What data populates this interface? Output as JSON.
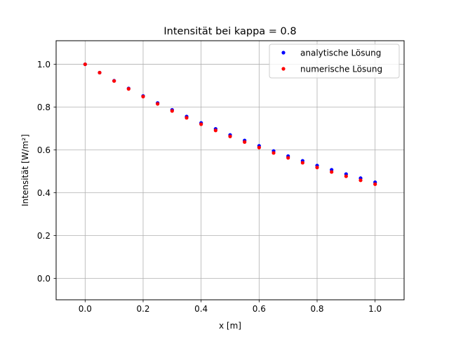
{
  "chart_data": {
    "type": "scatter",
    "title": "Intensität bei kappa = 0.8",
    "xlabel": "x [m]",
    "ylabel": "Intensität [W/m²]",
    "xlim": [
      -0.1,
      1.1
    ],
    "ylim": [
      -0.1,
      1.11
    ],
    "xticks": [
      0.0,
      0.2,
      0.4,
      0.6,
      0.8,
      1.0
    ],
    "yticks": [
      0.0,
      0.2,
      0.4,
      0.6,
      0.8,
      1.0
    ],
    "xtick_labels": [
      "0.0",
      "0.2",
      "0.4",
      "0.6",
      "0.8",
      "1.0"
    ],
    "ytick_labels": [
      "0.0",
      "0.2",
      "0.4",
      "0.6",
      "0.8",
      "1.0"
    ],
    "grid": true,
    "legend_position": "top-right",
    "x": [
      0.0,
      0.05,
      0.1,
      0.15,
      0.2,
      0.25,
      0.3,
      0.35,
      0.4,
      0.45,
      0.5,
      0.55,
      0.6,
      0.65,
      0.7,
      0.75,
      0.8,
      0.85,
      0.9,
      0.95,
      1.0
    ],
    "series": [
      {
        "name": "analytische Lösung",
        "color": "#0000ff",
        "values": [
          1.0,
          0.961,
          0.923,
          0.887,
          0.852,
          0.819,
          0.787,
          0.756,
          0.726,
          0.698,
          0.67,
          0.644,
          0.619,
          0.595,
          0.571,
          0.549,
          0.527,
          0.507,
          0.487,
          0.468,
          0.449
        ]
      },
      {
        "name": "numerische Lösung",
        "color": "#ff0000",
        "values": [
          1.0,
          0.961,
          0.922,
          0.885,
          0.849,
          0.815,
          0.782,
          0.75,
          0.72,
          0.691,
          0.663,
          0.637,
          0.611,
          0.586,
          0.563,
          0.54,
          0.518,
          0.497,
          0.477,
          0.458,
          0.44
        ]
      }
    ]
  }
}
